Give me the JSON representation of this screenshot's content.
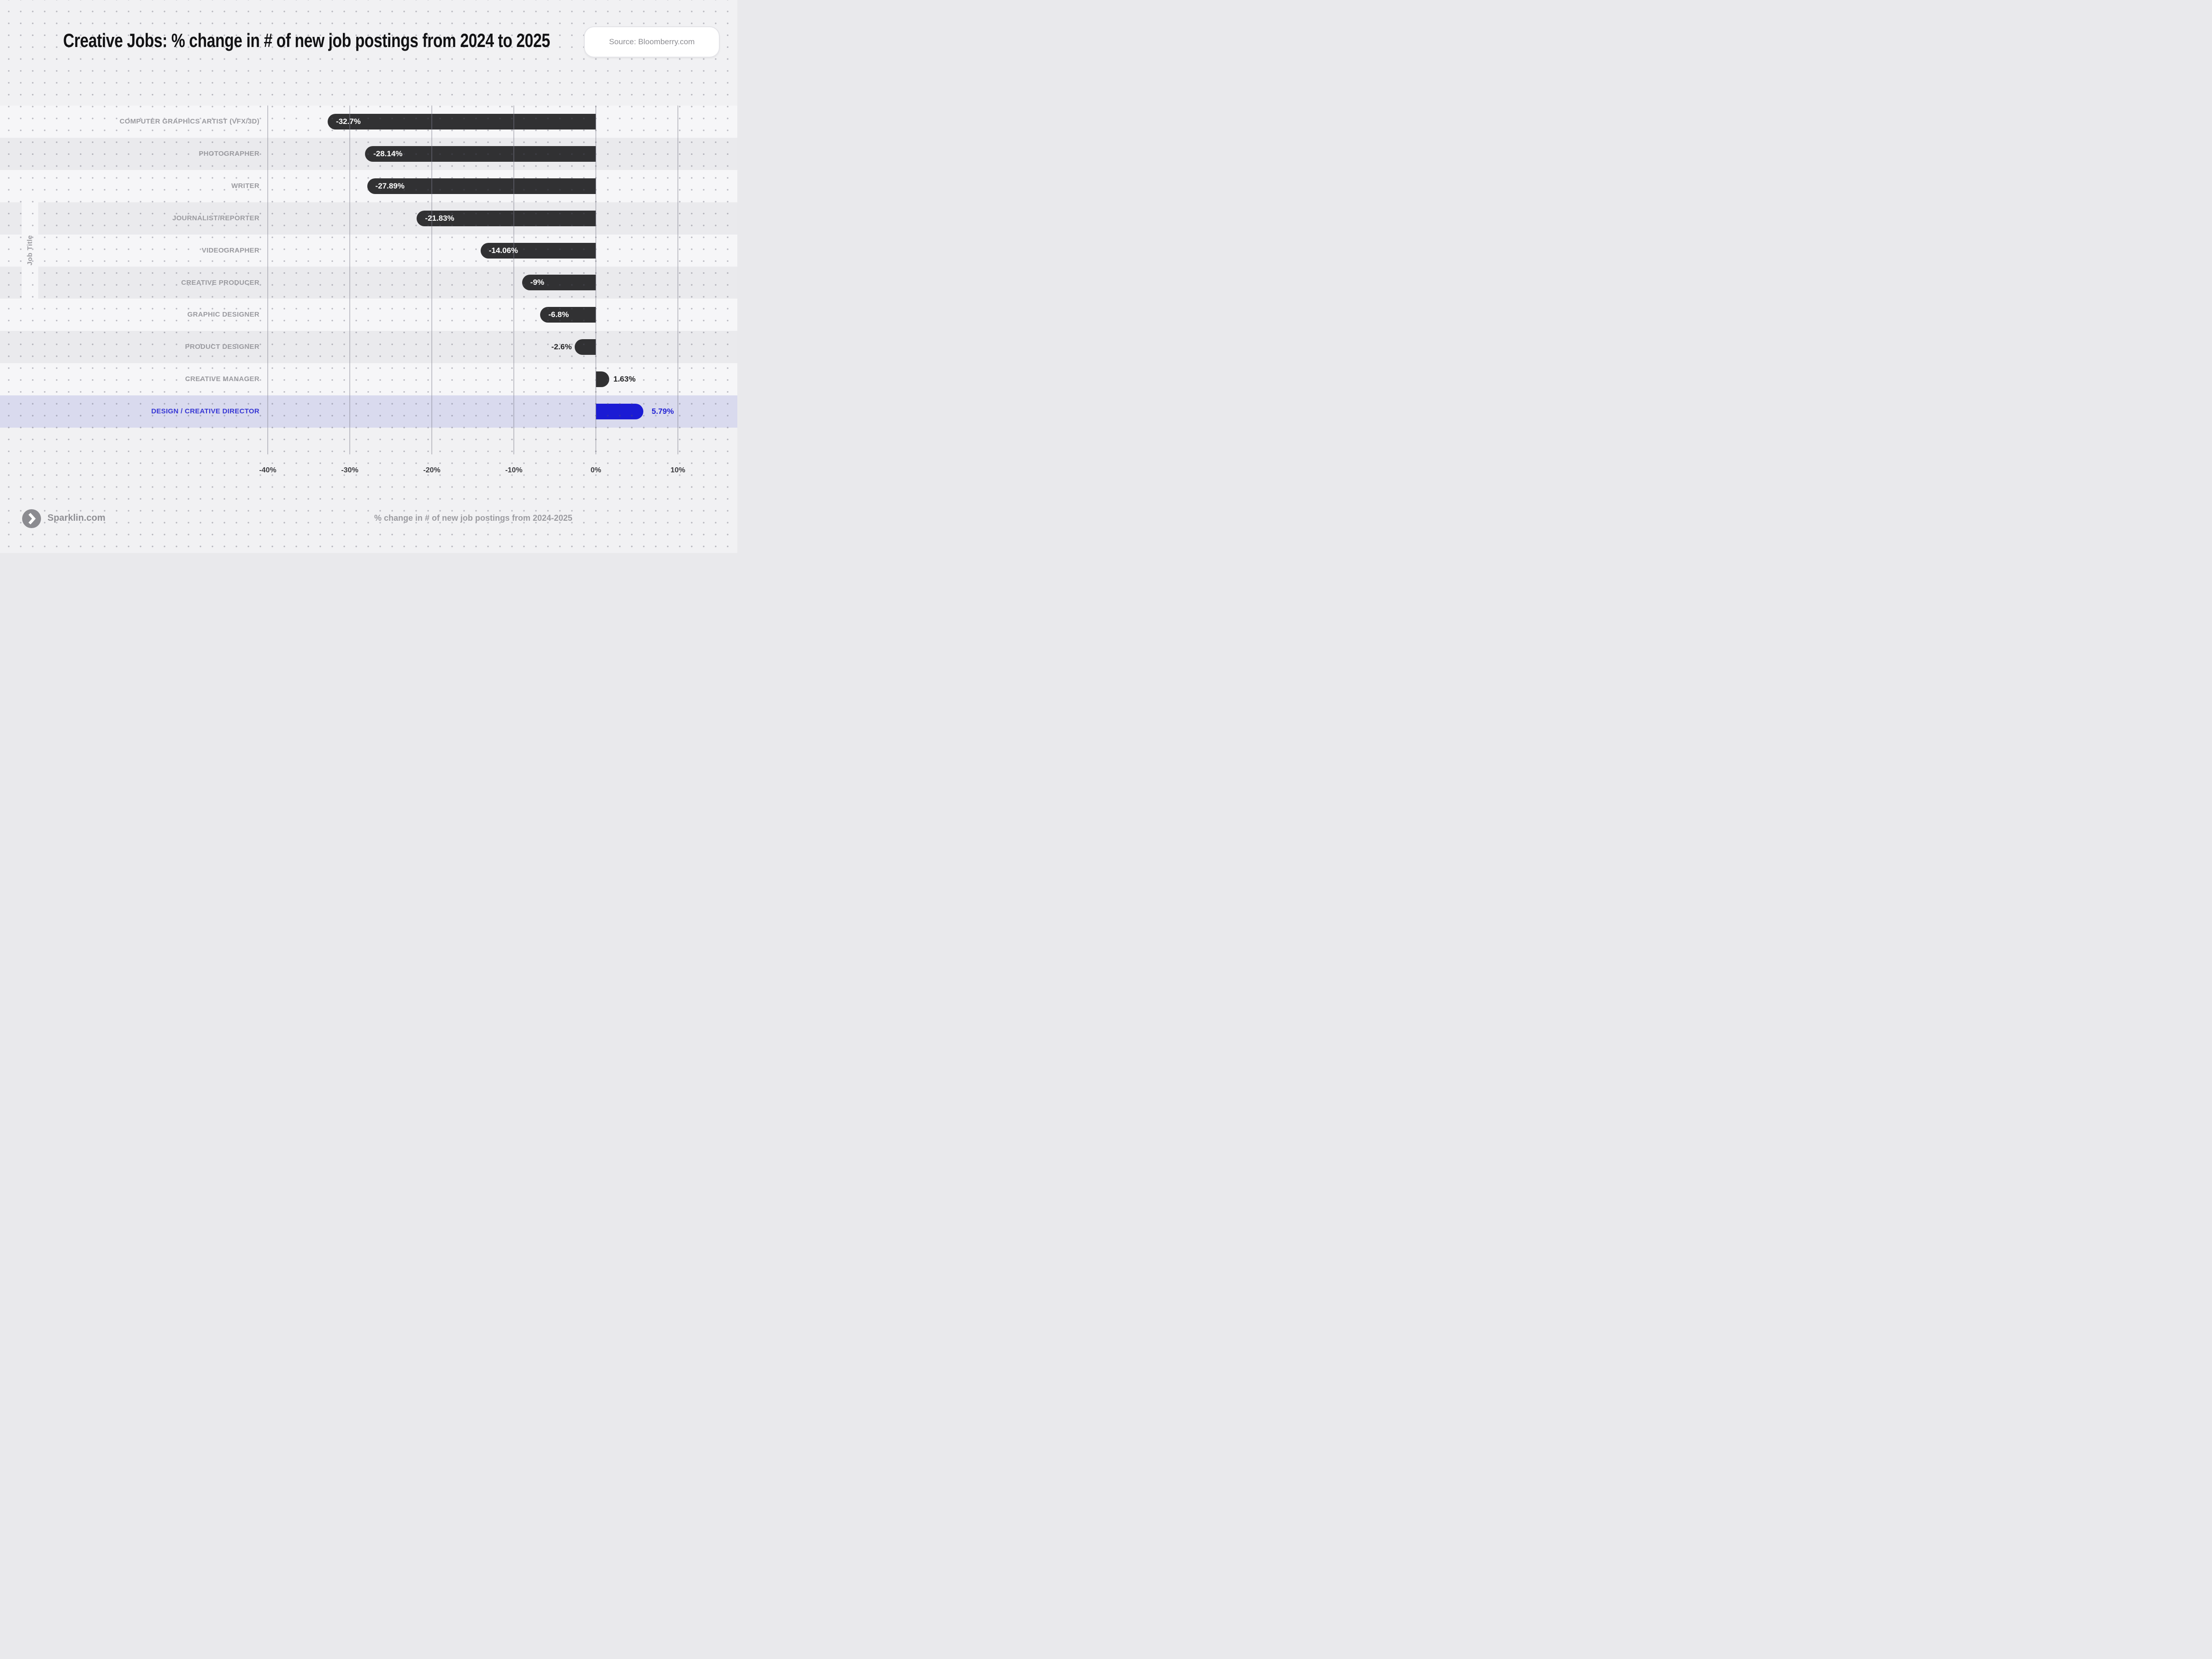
{
  "source": {
    "label": "Source: Bloomberry.com"
  },
  "footer": {
    "brand": "Sparklin.com"
  },
  "colors": {
    "background": "#f1f1f3",
    "row_base": "#f6f6f8",
    "row_alt": "#eaeaed",
    "highlight_row": "#d9daee",
    "bar": "#313133",
    "bar_highlight": "#1b1bd4",
    "value_inside_text": "#ffffff",
    "value_outside_text": "#232325",
    "value_highlight_text": "#2222d4",
    "label_gray": "#9b9ba0",
    "label_highlight": "#3535d4",
    "tick_text": "#3b3b3f",
    "grid_line": "#c9c9ce",
    "dot": "#c4c4c9",
    "title_text": "#121214"
  },
  "chart_data": {
    "type": "bar",
    "orientation": "horizontal",
    "title": "Creative Jobs: % change in # of new job postings from 2024 to 2025",
    "xlabel": "% change in # of new job postings from 2024-2025",
    "ylabel": "Job Title",
    "legend": "none",
    "grid": "vertical",
    "categories": [
      "COMPUTER GRAPHICS ARTIST (VFX/3D)",
      "PHOTOGRAPHER",
      "WRITER",
      "JOURNALIST/REPORTER",
      "VIDEOGRAPHER",
      "CREATIVE PRODUCER",
      "GRAPHIC DESIGNER",
      "PRODUCT DESIGNER",
      "CREATIVE MANAGER",
      "DESIGN / CREATIVE DIRECTOR"
    ],
    "values": [
      -32.7,
      -28.14,
      -27.89,
      -21.83,
      -14.06,
      -9,
      -6.8,
      -2.6,
      1.63,
      5.79
    ],
    "value_labels": [
      "-32.7%",
      "-28.14%",
      "-27.89%",
      "-21.83%",
      "-14.06%",
      "-9%",
      "-6.8%",
      "-2.6%",
      "1.63%",
      "5.79%"
    ],
    "highlight_index": 9,
    "xticks": [
      "-40%",
      "-30%",
      "-20%",
      "-10%",
      "0%",
      "10%"
    ],
    "xtick_values": [
      -40,
      -30,
      -20,
      -10,
      0,
      10
    ],
    "xlim": [
      -40,
      10
    ]
  }
}
